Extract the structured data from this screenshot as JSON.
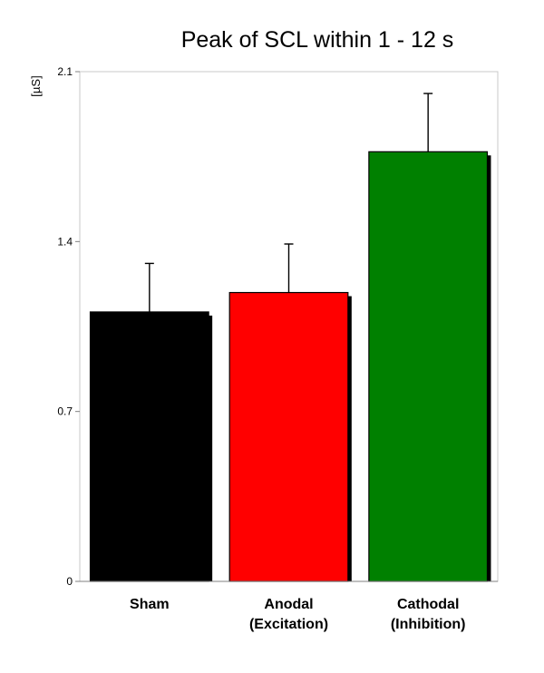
{
  "chart_data": {
    "type": "bar",
    "title": "Peak of SCL within 1 - 12 s",
    "ylabel": "[µS]",
    "xlabel": "",
    "ylim": [
      0,
      2.1
    ],
    "yticks": [
      "0",
      "0.7",
      "1.4",
      "2.1"
    ],
    "categories": [
      [
        "Sham"
      ],
      [
        "Anodal",
        "(Excitation)"
      ],
      [
        "Cathodal",
        "(Inhibition)"
      ]
    ],
    "values": [
      1.11,
      1.19,
      1.77
    ],
    "error_upper": [
      1.31,
      1.39,
      2.01
    ],
    "colors": [
      "#000000",
      "#ff0000",
      "#008000"
    ],
    "grid": false,
    "legend": "none"
  }
}
